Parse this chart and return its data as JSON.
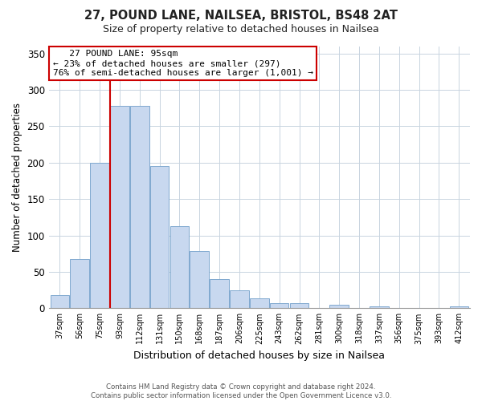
{
  "title": "27, POUND LANE, NAILSEA, BRISTOL, BS48 2AT",
  "subtitle": "Size of property relative to detached houses in Nailsea",
  "xlabel": "Distribution of detached houses by size in Nailsea",
  "ylabel": "Number of detached properties",
  "bar_labels": [
    "37sqm",
    "56sqm",
    "75sqm",
    "93sqm",
    "112sqm",
    "131sqm",
    "150sqm",
    "168sqm",
    "187sqm",
    "206sqm",
    "225sqm",
    "243sqm",
    "262sqm",
    "281sqm",
    "300sqm",
    "318sqm",
    "337sqm",
    "356sqm",
    "375sqm",
    "393sqm",
    "412sqm"
  ],
  "bar_values": [
    18,
    68,
    200,
    278,
    278,
    195,
    113,
    79,
    40,
    25,
    14,
    7,
    7,
    0,
    5,
    0,
    2,
    0,
    0,
    0,
    2
  ],
  "bar_color": "#c8d8ef",
  "bar_edge_color": "#7fa8cf",
  "highlight_bar_index": 3,
  "highlight_color": "#cc0000",
  "ylim": [
    0,
    360
  ],
  "yticks": [
    0,
    50,
    100,
    150,
    200,
    250,
    300,
    350
  ],
  "annotation_title": "27 POUND LANE: 95sqm",
  "annotation_line1": "← 23% of detached houses are smaller (297)",
  "annotation_line2": "76% of semi-detached houses are larger (1,001) →",
  "annotation_box_color": "#ffffff",
  "annotation_box_edge": "#cc0000",
  "footer1": "Contains HM Land Registry data © Crown copyright and database right 2024.",
  "footer2": "Contains public sector information licensed under the Open Government Licence v3.0.",
  "bg_color": "#ffffff",
  "grid_color": "#c8d4e0"
}
